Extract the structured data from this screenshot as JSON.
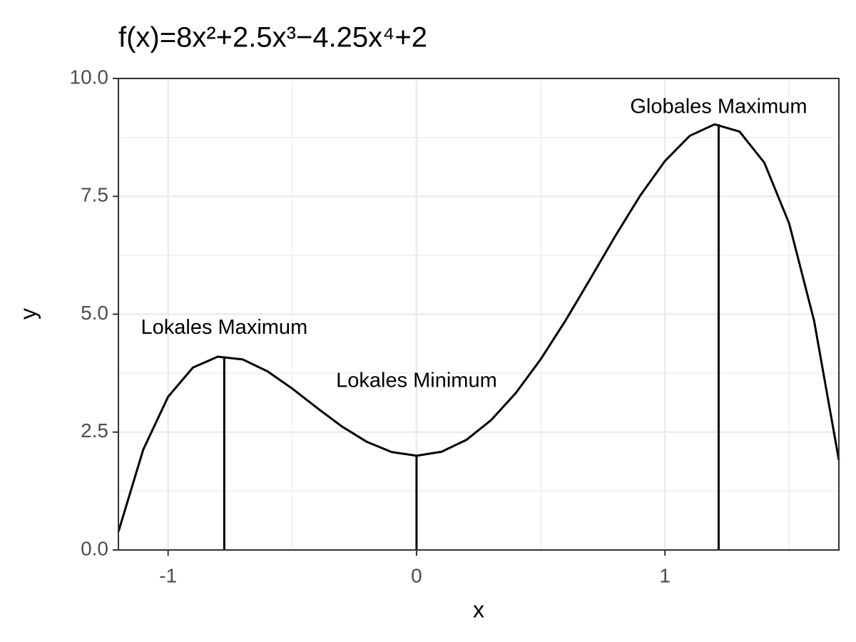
{
  "chart_data": {
    "type": "line",
    "title": "f(x)=8x²+2.5x³−4.25x⁴+2",
    "x_label": "x",
    "y_label": "y",
    "x": [
      -1.2,
      -1.1,
      -1.0,
      -0.9,
      -0.8,
      -0.7,
      -0.6,
      -0.5,
      -0.4,
      -0.3,
      -0.2,
      -0.1,
      0,
      0.1,
      0.2,
      0.3,
      0.4,
      0.5,
      0.6,
      0.7,
      0.8,
      0.9,
      1.0,
      1.1,
      1.2,
      1.3,
      1.4,
      1.5,
      1.6,
      1.7
    ],
    "series": [
      {
        "color": "#000000",
        "values": [
          0.387,
          2.13,
          3.25,
          3.869,
          4.099,
          4.042,
          3.789,
          3.422,
          3.011,
          2.618,
          2.293,
          2.077,
          2,
          2.082,
          2.333,
          2.753,
          3.331,
          4.047,
          4.869,
          5.757,
          6.659,
          7.514,
          8.25,
          8.785,
          9.027,
          8.874,
          8.213,
          6.922,
          4.867,
          1.906
        ]
      }
    ],
    "vlines": [
      {
        "x": -0.774,
        "y": 4.108
      },
      {
        "x": 0,
        "y": 2
      },
      {
        "x": 1.216,
        "y": 9.032
      }
    ],
    "annotations": [
      {
        "text": "Lokales Maximum",
        "x": -0.774,
        "y": 4.7
      },
      {
        "text": "Lokales Minimum",
        "x": 0,
        "y": 3.57
      },
      {
        "text": "Globales Maximum",
        "x": 1.216,
        "y": 9.38
      }
    ],
    "xlim": [
      -1.2,
      1.7
    ],
    "ylim": [
      0,
      10
    ],
    "xticks": [
      -1,
      0,
      1
    ],
    "yticks": [
      {
        "value": 0,
        "label": "0.0"
      },
      2.5,
      {
        "value": 5,
        "label": "5.0"
      },
      7.5,
      {
        "value": 10,
        "label": "10.0"
      }
    ],
    "x_minor_grid": [
      -0.5,
      0.5,
      1.5
    ],
    "y_minor_grid": [
      1.25,
      3.75,
      6.25,
      8.75
    ],
    "grid": true
  }
}
